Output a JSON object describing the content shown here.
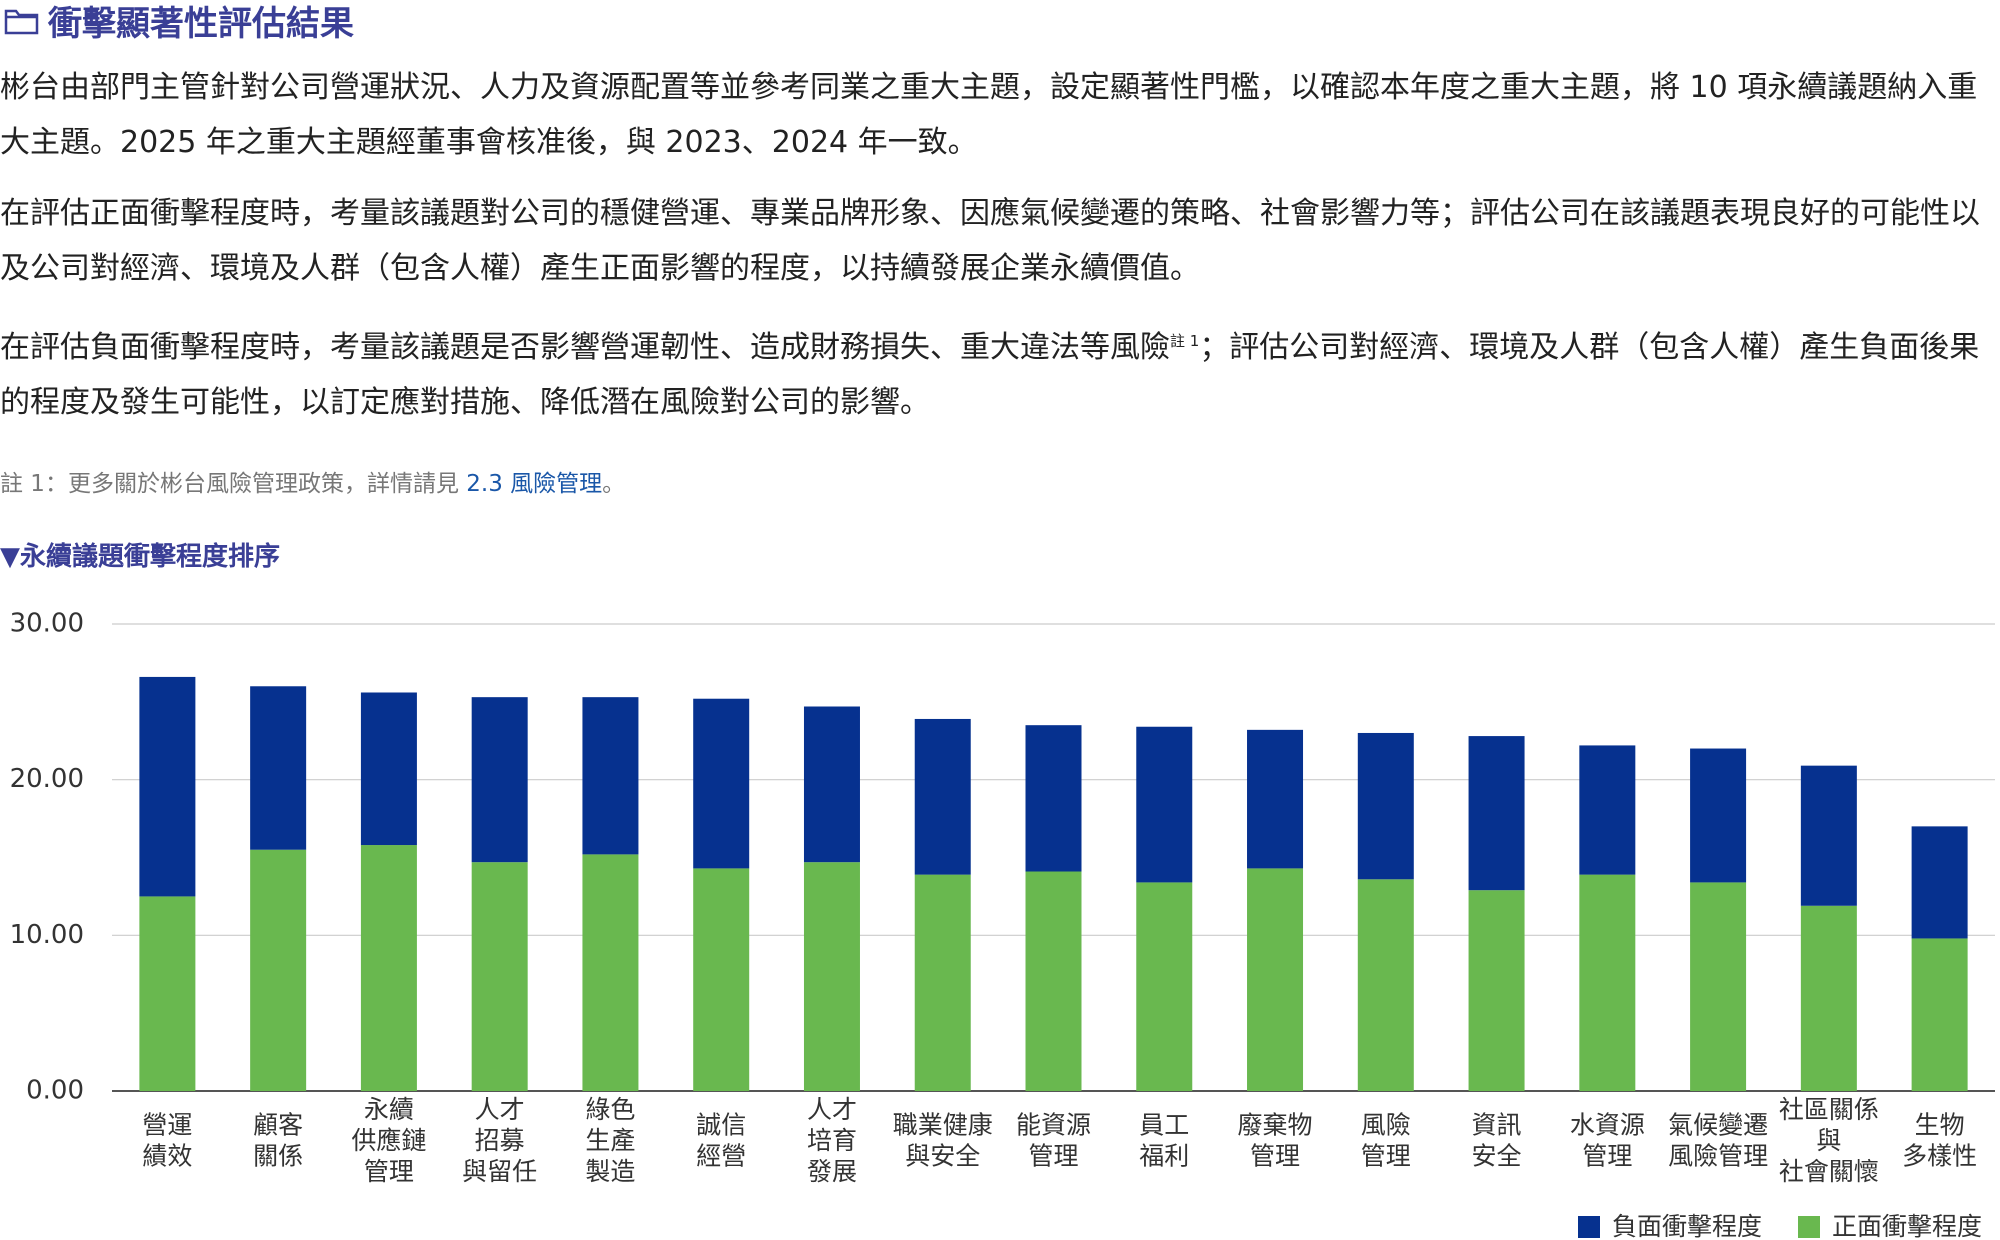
{
  "header": {
    "title": "衝擊顯著性評估結果"
  },
  "paragraphs": [
    {
      "text": "彬台由部門主管針對公司營運狀況、人力及資源配置等並參考同業之重大主題，設定顯著性門檻，以確認本年度之重大主題，將 10 項永續議題納入重大主題。2025 年之重大主題經董事會核准後，與 2023、2024 年一致。"
    },
    {
      "text": "在評估正面衝擊程度時，考量該議題對公司的穩健營運、專業品牌形象、因應氣候變遷的策略、社會影響力等；評估公司在該議題表現良好的可能性以及公司對經濟、環境及人群（包含人權）產生正面影響的程度，以持續發展企業永續價值。"
    },
    {
      "text": "在評估負面衝擊程度時，考量該議題是否影響營運韌性、造成財務損失、重大違法等風險",
      "footnote": "註 1",
      "text_after": "；評估公司對經濟、環境及人群（包含人權）產生負面後果的程度及發生可能性，以訂定應對措施、降低潛在風險對公司的影響。"
    }
  ],
  "note": {
    "text": "註 1：更多關於彬台風險管理政策，詳情請見 ",
    "link": "2.3 風險管理",
    "text_after": "。"
  },
  "chart_data": {
    "type": "stacked_bar",
    "title": "▼永續議題衝擊程度排序",
    "categories": [
      [
        "營運",
        "績效"
      ],
      [
        "顧客",
        "關係"
      ],
      [
        "永續",
        "供應鏈",
        "管理"
      ],
      [
        "人才",
        "招募",
        "與留任"
      ],
      [
        "綠色",
        "生產",
        "製造"
      ],
      [
        "誠信",
        "經營"
      ],
      [
        "人才",
        "培育",
        "發展"
      ],
      [
        "職業健康",
        "與安全"
      ],
      [
        "能資源",
        "管理"
      ],
      [
        "員工",
        "福利"
      ],
      [
        "廢棄物",
        "管理"
      ],
      [
        "風險",
        "管理"
      ],
      [
        "資訊",
        "安全"
      ],
      [
        "水資源",
        "管理"
      ],
      [
        "氣候變遷",
        "風險管理"
      ],
      [
        "社區關係",
        "與",
        "社會關懷"
      ],
      [
        "生物",
        "多樣性"
      ]
    ],
    "series": [
      {
        "name": "負面衝擊程度",
        "color": "#06318f",
        "values": [
          14.1,
          10.5,
          9.8,
          10.6,
          10.1,
          10.9,
          10.0,
          10.0,
          9.4,
          10.0,
          8.9,
          9.4,
          9.9,
          8.3,
          8.6,
          9.0,
          7.2
        ]
      },
      {
        "name": "正面衝擊程度",
        "color": "#69b84f",
        "values": [
          12.5,
          15.5,
          15.8,
          14.7,
          15.2,
          14.3,
          14.7,
          13.9,
          14.1,
          13.4,
          14.3,
          13.6,
          12.9,
          13.9,
          13.4,
          11.9,
          9.8
        ]
      }
    ],
    "ylim": [
      0,
      30
    ],
    "yticks": [
      {
        "value": 0,
        "label": "0.00"
      },
      {
        "value": 10,
        "label": "10.00"
      },
      {
        "value": 20,
        "label": "20.00"
      },
      {
        "value": 30,
        "label": "30.00"
      }
    ],
    "grid": true
  }
}
